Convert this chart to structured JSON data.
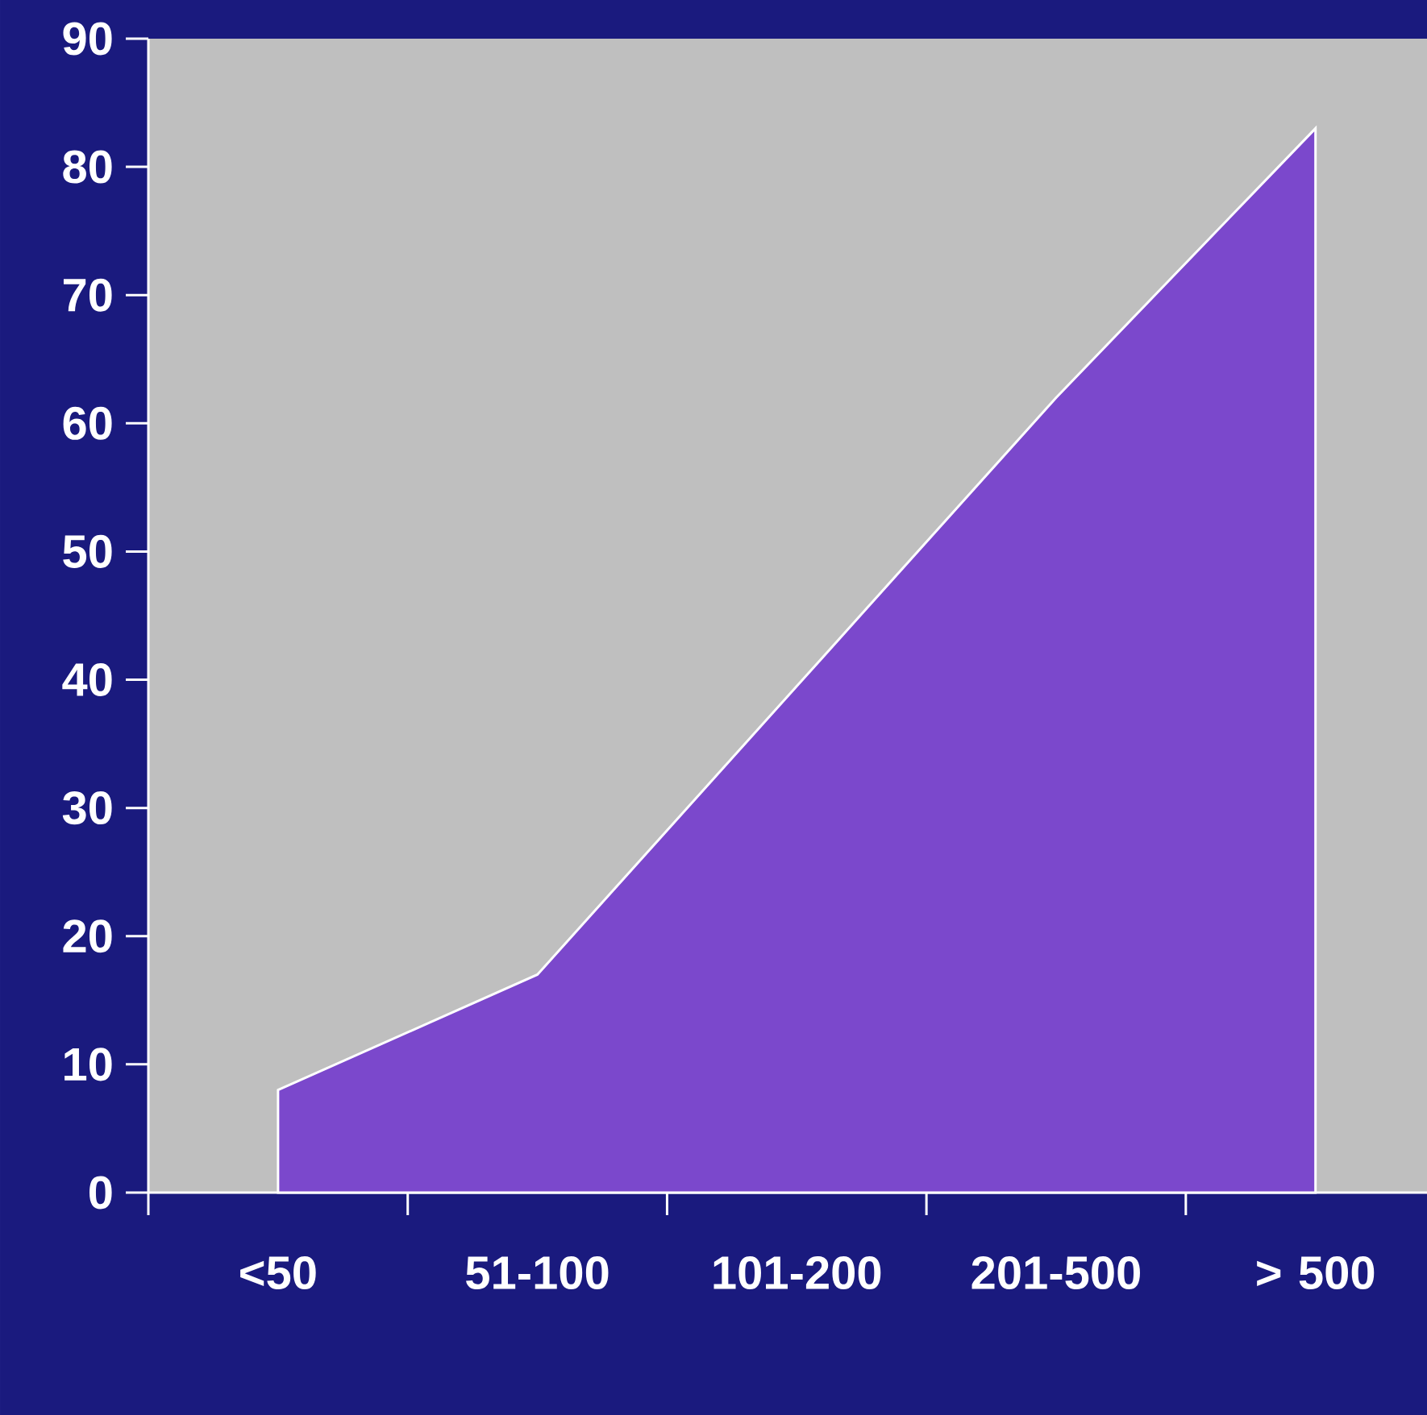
{
  "chart_data": {
    "type": "area",
    "categories": [
      "<50",
      "51-100",
      "101-200",
      "201-500",
      "> 500"
    ],
    "values": [
      8,
      17,
      39.5,
      62,
      83
    ],
    "color": "#7b48cc",
    "ylim": [
      0,
      90
    ],
    "yticks": [
      0,
      10,
      20,
      30,
      40,
      50,
      60,
      70,
      80,
      90
    ]
  }
}
